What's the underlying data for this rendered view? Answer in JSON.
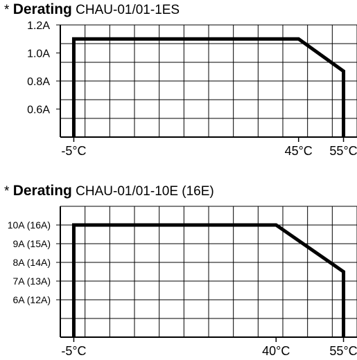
{
  "chart_data": [
    {
      "type": "line",
      "title_prefix": "* ",
      "title_bold": "Derating",
      "title_rest": " CHAU-01/01-1ES",
      "y_ticks": [
        "0.6A",
        "0.8A",
        "1.0A",
        "1.2A"
      ],
      "y_tick_values": [
        0.6,
        0.8,
        1.0,
        1.2
      ],
      "x_tick_labels": [
        "-5°C",
        "45°C",
        "55°C"
      ],
      "x_tick_values": [
        -5,
        45,
        55
      ],
      "xlim": [
        -8,
        58
      ],
      "ylim": [
        0.4,
        1.2
      ],
      "series": [
        {
          "x": [
            -5,
            -5,
            45,
            55,
            55
          ],
          "y": [
            0.4,
            1.1,
            1.1,
            0.87,
            0.4
          ]
        }
      ],
      "grid": true
    },
    {
      "type": "line",
      "title_prefix": "* ",
      "title_bold": "Derating",
      "title_rest": " CHAU-01/01-10E (16E)",
      "y_ticks": [
        "6A (12A)",
        "7A (13A)",
        "8A (14A)",
        "9A (15A)",
        "10A (16A)"
      ],
      "y_tick_values": [
        6,
        7,
        8,
        9,
        10
      ],
      "x_tick_labels": [
        "-5°C",
        "40°C",
        "55°C"
      ],
      "x_tick_values": [
        -5,
        40,
        55
      ],
      "xlim": [
        -8,
        58
      ],
      "ylim": [
        4,
        11
      ],
      "series": [
        {
          "x": [
            -5,
            -5,
            40,
            55,
            55
          ],
          "y": [
            4,
            10,
            10,
            7.5,
            4
          ]
        }
      ],
      "grid": true
    }
  ]
}
